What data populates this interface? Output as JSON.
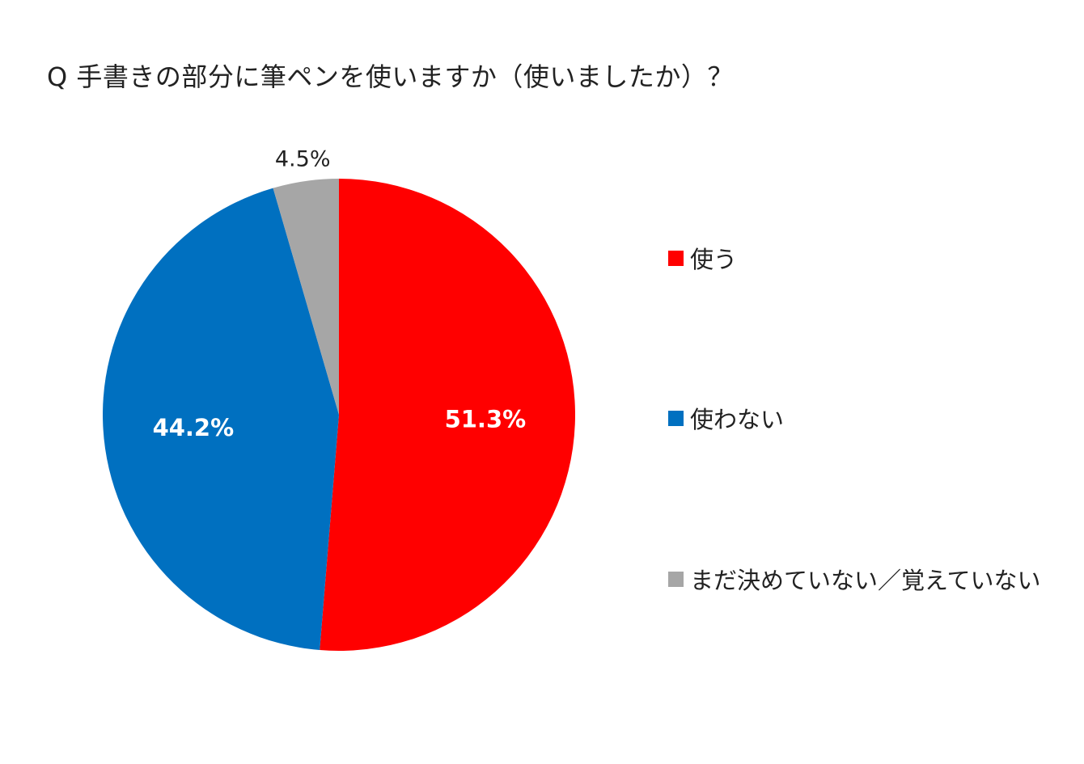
{
  "chart_data": {
    "type": "pie",
    "title": "Q 手書きの部分に筆ペンを使いますか（使いましたか）？",
    "slices": [
      {
        "label": "使う",
        "value": 51.3,
        "value_label": "51.3%",
        "color": "#ff0000",
        "label_color": "#ffffff"
      },
      {
        "label": "使わない",
        "value": 44.2,
        "value_label": "44.2%",
        "color": "#0070c0",
        "label_color": "#ffffff"
      },
      {
        "label": "まだ決めていない／覚えていない",
        "value": 4.5,
        "value_label": "4.5%",
        "color": "#a6a6a6",
        "label_color": "#222222"
      }
    ],
    "start_angle": "12 o'clock",
    "direction": "clockwise",
    "legend_position": "right"
  }
}
